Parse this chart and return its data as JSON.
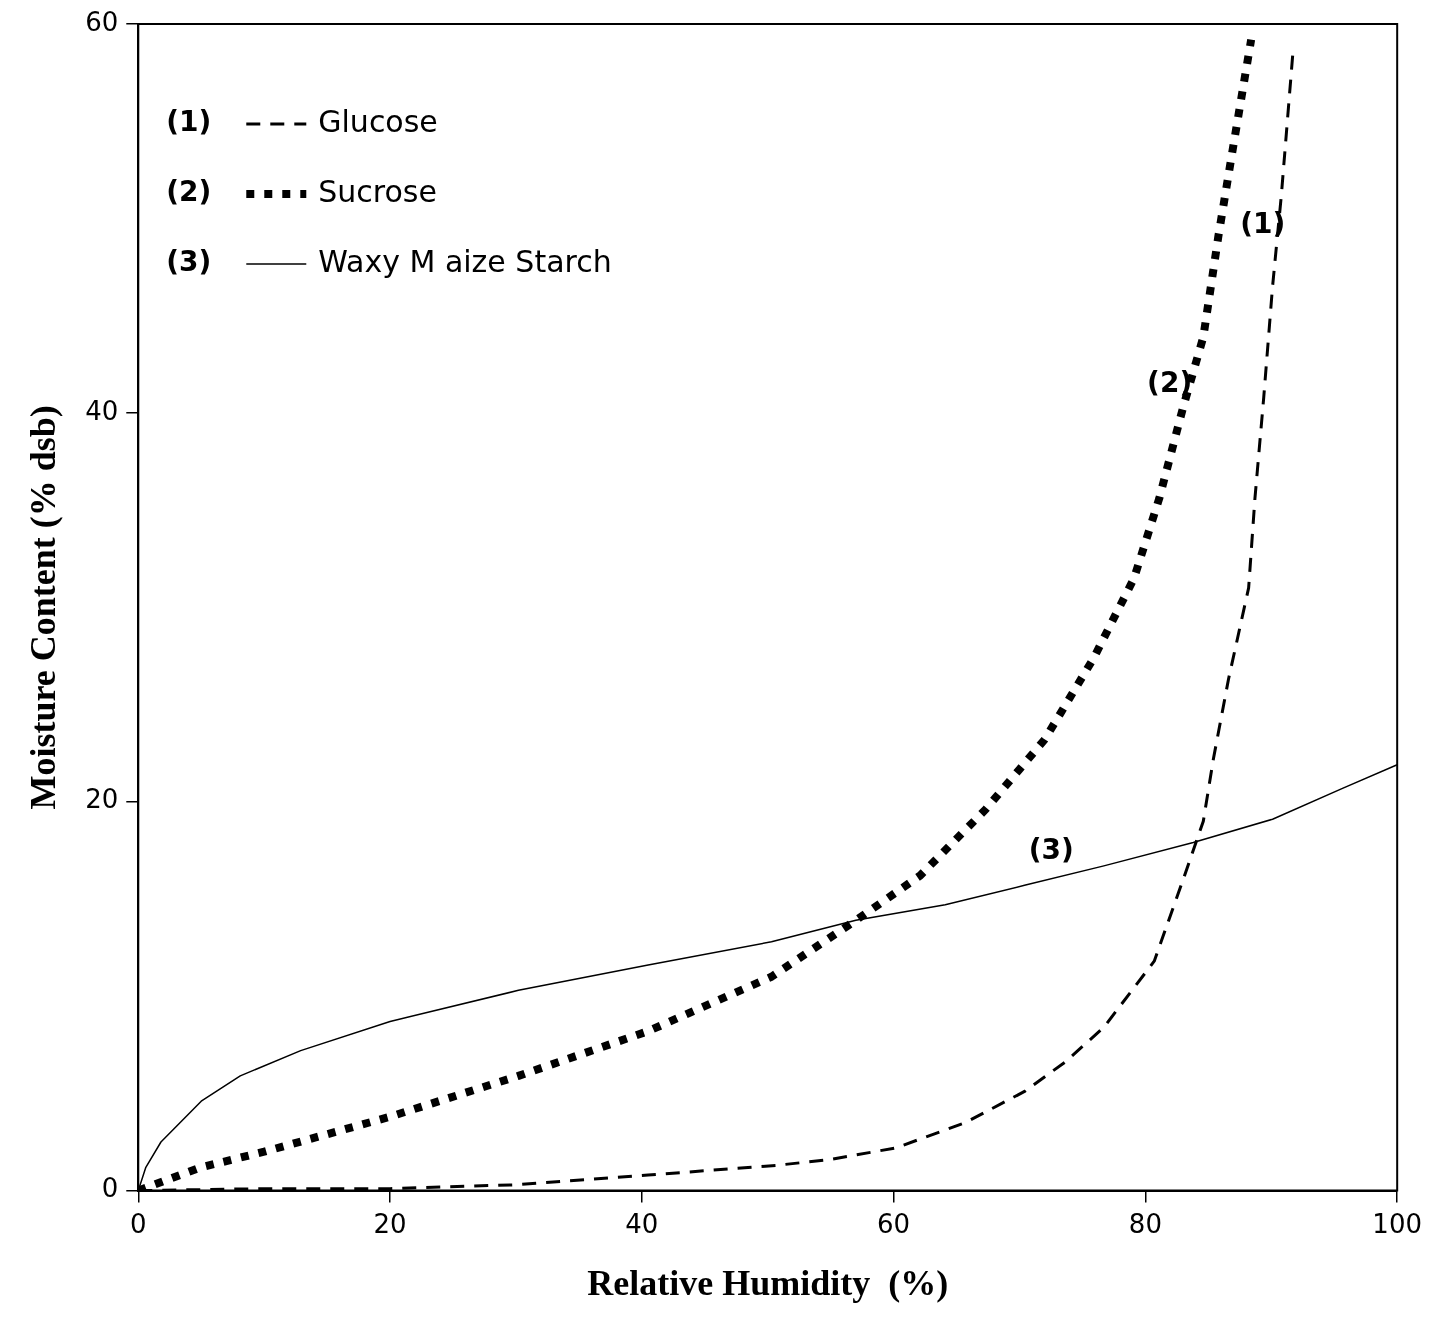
{
  "chart_data": {
    "type": "line",
    "xlabel": "Relative Humidity  (%)",
    "ylabel": "Moisture Content (% dsb)",
    "xlim": [
      0,
      100
    ],
    "xticks": [
      0,
      20,
      40,
      60,
      80,
      100
    ],
    "ylim": [
      0,
      60
    ],
    "yticks": [
      0,
      20,
      40,
      60
    ],
    "grid": false,
    "legend": "top left",
    "marker": "none",
    "series": [
      {
        "name": "Glucose",
        "color": "#000000",
        "line_style": "dashed",
        "x": [
          0,
          10,
          20,
          30,
          40.5,
          50.7,
          55,
          60.2,
          65.7,
          70.4,
          73.6,
          76.7,
          80.7,
          83.0,
          84.6,
          85.4,
          86.6,
          88.2,
          88.7,
          89.4,
          90.1,
          90.8,
          91.7
        ],
        "values": [
          0,
          0.1,
          0.1,
          0.3,
          0.8,
          1.3,
          1.6,
          2.2,
          3.5,
          5.1,
          6.6,
          8.4,
          11.8,
          16,
          19,
          22.2,
          26.3,
          31,
          35.6,
          40.8,
          46.5,
          51.2,
          58.4
        ]
      },
      {
        "name": "Sucrose",
        "color": "#000000",
        "line_style": "dotted",
        "x": [
          0,
          5,
          10,
          20,
          30.2,
          40.5,
          50.3,
          57,
          62.1,
          67.3,
          72,
          75.9,
          79.1,
          81.1,
          83,
          84.6,
          85.8,
          87,
          88.4
        ],
        "values": [
          0,
          1.2,
          2,
          3.8,
          5.9,
          8.2,
          11,
          13.9,
          16.2,
          19.6,
          23.2,
          27.4,
          31.5,
          35.6,
          40.3,
          43.9,
          49.1,
          53.8,
          59.2
        ]
      },
      {
        "name": "Waxy M aize Starch",
        "color": "#000000",
        "line_style": "solid",
        "x": [
          0,
          0.6,
          1.8,
          5,
          8.1,
          12.9,
          20,
          30.2,
          40.5,
          50.3,
          57,
          64.1,
          70.4,
          76.7,
          83.8,
          90.1,
          95.7,
          100
        ],
        "values": [
          0,
          1.2,
          2.5,
          4.6,
          5.9,
          7.2,
          8.7,
          10.3,
          11.6,
          12.8,
          13.9,
          14.7,
          15.7,
          16.7,
          17.9,
          19.1,
          20.7,
          21.9
        ]
      }
    ],
    "annotations": [
      {
        "text": "(1)",
        "x": 90.4,
        "y": 48.5
      },
      {
        "text": "(2)",
        "x": 83,
        "y": 40.3
      },
      {
        "text": "(3)",
        "x": 73.6,
        "y": 16.3
      }
    ]
  }
}
